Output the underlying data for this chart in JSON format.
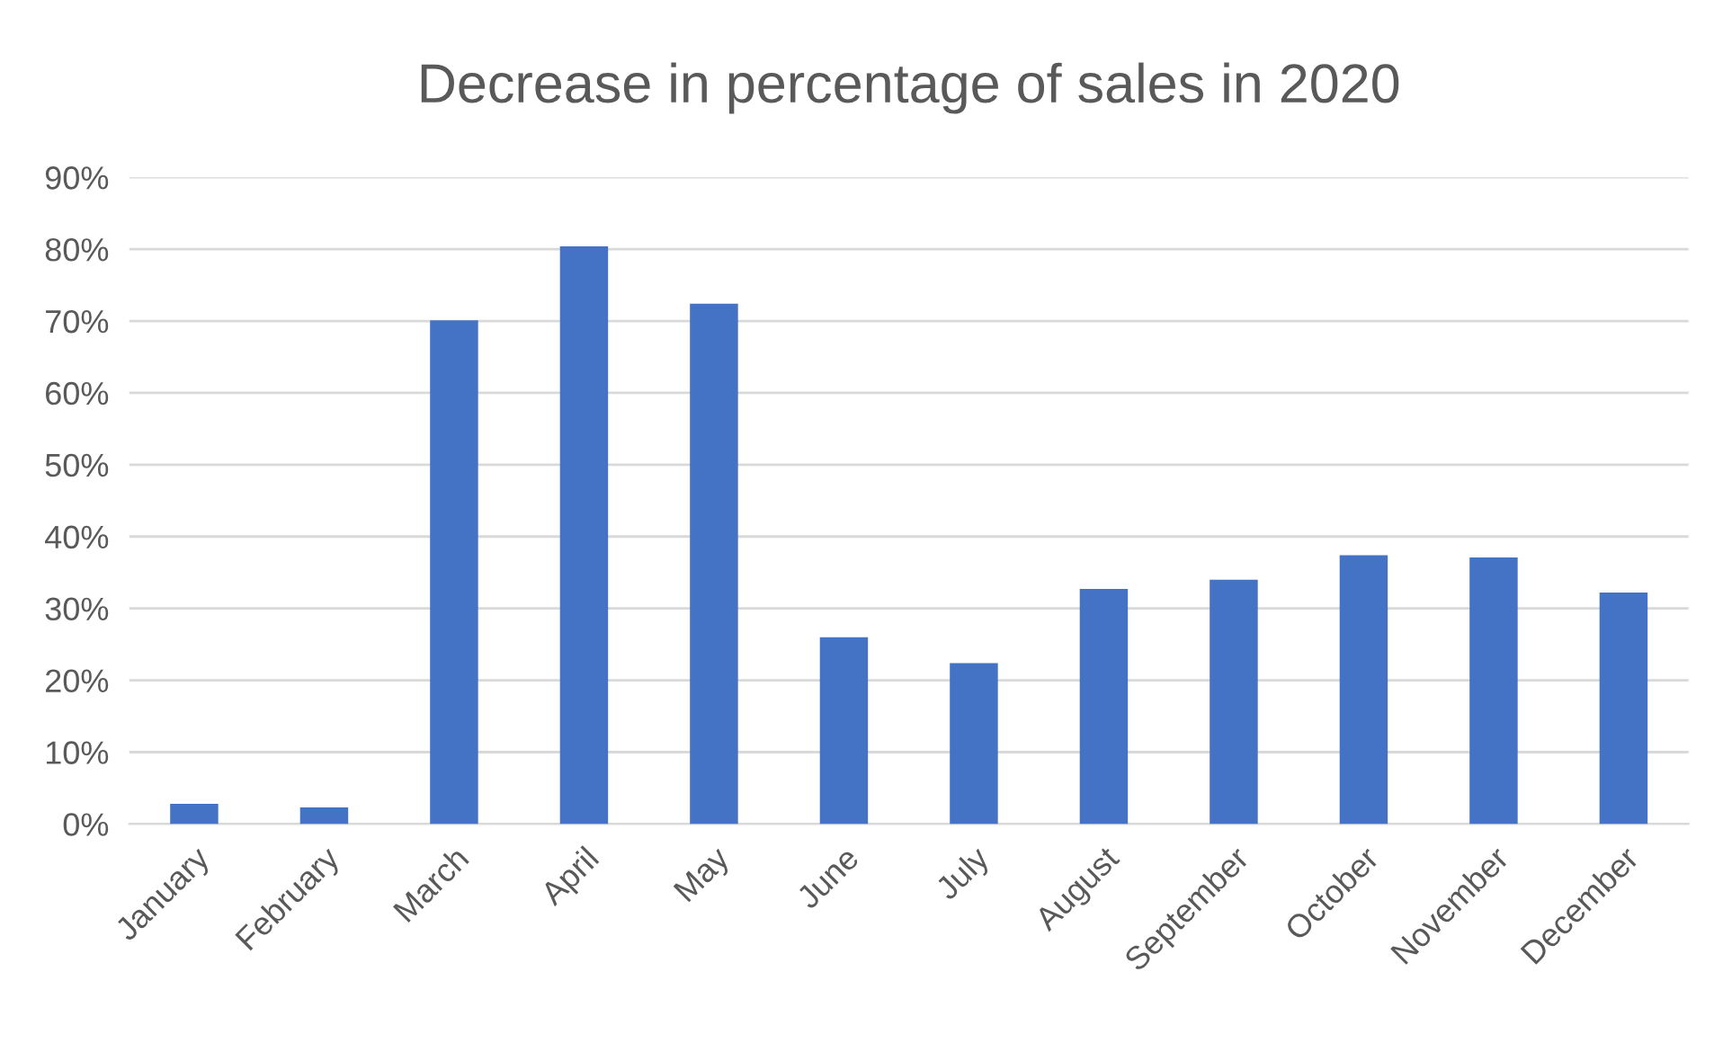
{
  "chart_data": {
    "type": "bar",
    "title": "Decrease in percentage of sales in 2020",
    "categories": [
      "January",
      "February",
      "March",
      "April",
      "May",
      "June",
      "July",
      "August",
      "September",
      "October",
      "November",
      "December"
    ],
    "values": [
      2.8,
      2.3,
      70.1,
      80.4,
      72.4,
      26.0,
      22.4,
      32.7,
      34.0,
      37.4,
      37.1,
      32.2
    ],
    "color": "#4472c4",
    "ylim": [
      0,
      90
    ],
    "yticks": [
      {
        "value": 0,
        "label": "0%"
      },
      {
        "value": 10,
        "label": "10%"
      },
      {
        "value": 20,
        "label": "20%"
      },
      {
        "value": 30,
        "label": "30%"
      },
      {
        "value": 40,
        "label": "40%"
      },
      {
        "value": 50,
        "label": "50%"
      },
      {
        "value": 60,
        "label": "60%"
      },
      {
        "value": 70,
        "label": "70%"
      },
      {
        "value": 80,
        "label": "80%"
      },
      {
        "value": 90,
        "label": "90%"
      }
    ],
    "grid": "y"
  }
}
